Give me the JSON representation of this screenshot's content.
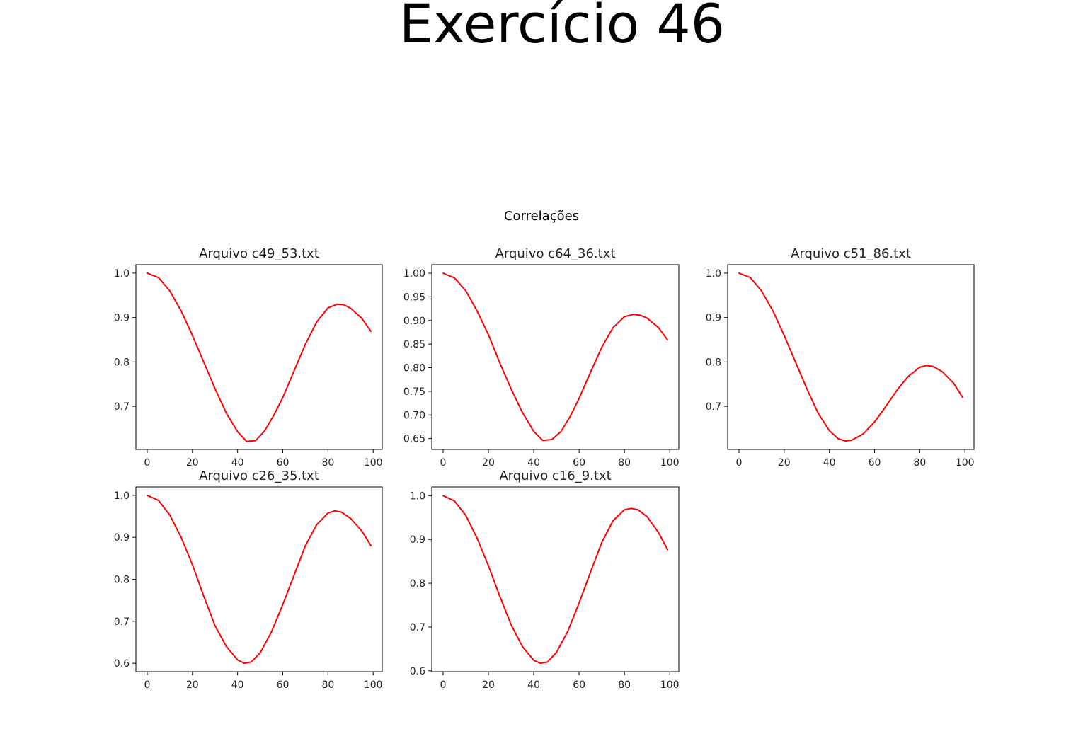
{
  "page_title": "Exercício 46",
  "chart_data": {
    "suptitle": "Correlações",
    "line_color": "#ff0000",
    "charts": [
      {
        "type": "line",
        "title": "Arquivo c49_53.txt",
        "xlim": [
          -5,
          104
        ],
        "ylim": [
          0.603,
          1.019
        ],
        "xticks": [
          0,
          20,
          40,
          60,
          80,
          100
        ],
        "yticks": [
          0.7,
          0.8,
          0.9,
          1.0
        ],
        "ytick_labels": [
          "0.7",
          "0.8",
          "0.9",
          "1.0"
        ],
        "x": [
          0,
          5,
          10,
          15,
          20,
          25,
          30,
          35,
          40,
          44,
          48,
          52,
          56,
          60,
          65,
          70,
          75,
          80,
          84,
          87,
          90,
          95,
          99
        ],
        "y": [
          1.0,
          0.99,
          0.96,
          0.915,
          0.86,
          0.8,
          0.74,
          0.685,
          0.643,
          0.621,
          0.623,
          0.645,
          0.68,
          0.72,
          0.78,
          0.84,
          0.89,
          0.922,
          0.93,
          0.929,
          0.921,
          0.898,
          0.869
        ]
      },
      {
        "type": "line",
        "title": "Arquivo c64_36.txt",
        "xlim": [
          -5,
          104
        ],
        "ylim": [
          0.627,
          1.018
        ],
        "xticks": [
          0,
          20,
          40,
          60,
          80,
          100
        ],
        "yticks": [
          0.65,
          0.7,
          0.75,
          0.8,
          0.85,
          0.9,
          0.95,
          1.0
        ],
        "ytick_labels": [
          "0.65",
          "0.70",
          "0.75",
          "0.80",
          "0.85",
          "0.90",
          "0.95",
          "1.00"
        ],
        "x": [
          0,
          5,
          10,
          15,
          20,
          25,
          30,
          35,
          40,
          44,
          48,
          52,
          56,
          60,
          65,
          70,
          75,
          80,
          84,
          87,
          90,
          95,
          99
        ],
        "y": [
          1.0,
          0.99,
          0.963,
          0.92,
          0.87,
          0.81,
          0.755,
          0.705,
          0.665,
          0.646,
          0.648,
          0.665,
          0.696,
          0.735,
          0.79,
          0.843,
          0.885,
          0.908,
          0.913,
          0.911,
          0.905,
          0.885,
          0.859
        ]
      },
      {
        "type": "line",
        "title": "Arquivo c51_86.txt",
        "xlim": [
          -5,
          104
        ],
        "ylim": [
          0.603,
          1.019
        ],
        "xticks": [
          0,
          20,
          40,
          60,
          80,
          100
        ],
        "yticks": [
          0.7,
          0.8,
          0.9,
          1.0
        ],
        "ytick_labels": [
          "0.7",
          "0.8",
          "0.9",
          "1.0"
        ],
        "x": [
          0,
          5,
          10,
          15,
          20,
          25,
          30,
          35,
          40,
          44,
          47,
          50,
          55,
          60,
          65,
          70,
          75,
          80,
          83,
          86,
          90,
          95,
          99
        ],
        "y": [
          1.0,
          0.99,
          0.96,
          0.915,
          0.86,
          0.8,
          0.74,
          0.685,
          0.645,
          0.627,
          0.622,
          0.624,
          0.638,
          0.665,
          0.7,
          0.737,
          0.768,
          0.788,
          0.792,
          0.79,
          0.778,
          0.752,
          0.72
        ]
      },
      {
        "type": "line",
        "title": "Arquivo c26_35.txt",
        "xlim": [
          -5,
          104
        ],
        "ylim": [
          0.58,
          1.02
        ],
        "xticks": [
          0,
          20,
          40,
          60,
          80,
          100
        ],
        "yticks": [
          0.6,
          0.7,
          0.8,
          0.9,
          1.0
        ],
        "ytick_labels": [
          "0.6",
          "0.7",
          "0.8",
          "0.9",
          "1.0"
        ],
        "x": [
          0,
          5,
          10,
          15,
          20,
          25,
          30,
          35,
          40,
          43,
          46,
          50,
          55,
          60,
          65,
          70,
          75,
          80,
          83,
          86,
          90,
          95,
          99
        ],
        "y": [
          1.0,
          0.988,
          0.953,
          0.9,
          0.835,
          0.76,
          0.69,
          0.64,
          0.608,
          0.6,
          0.603,
          0.625,
          0.675,
          0.74,
          0.81,
          0.88,
          0.93,
          0.958,
          0.963,
          0.96,
          0.945,
          0.915,
          0.88
        ]
      },
      {
        "type": "line",
        "title": "Arquivo c16_9.txt",
        "xlim": [
          -5,
          104
        ],
        "ylim": [
          0.598,
          1.02
        ],
        "xticks": [
          0,
          20,
          40,
          60,
          80,
          100
        ],
        "yticks": [
          0.6,
          0.7,
          0.8,
          0.9,
          1.0
        ],
        "ytick_labels": [
          "0.6",
          "0.7",
          "0.8",
          "0.9",
          "1.0"
        ],
        "x": [
          0,
          5,
          10,
          15,
          20,
          25,
          30,
          35,
          40,
          43,
          46,
          50,
          55,
          60,
          65,
          70,
          75,
          80,
          83,
          86,
          90,
          95,
          99
        ],
        "y": [
          1.0,
          0.988,
          0.955,
          0.903,
          0.84,
          0.77,
          0.705,
          0.655,
          0.624,
          0.617,
          0.62,
          0.642,
          0.69,
          0.755,
          0.825,
          0.893,
          0.943,
          0.968,
          0.971,
          0.968,
          0.952,
          0.916,
          0.877
        ]
      }
    ]
  }
}
